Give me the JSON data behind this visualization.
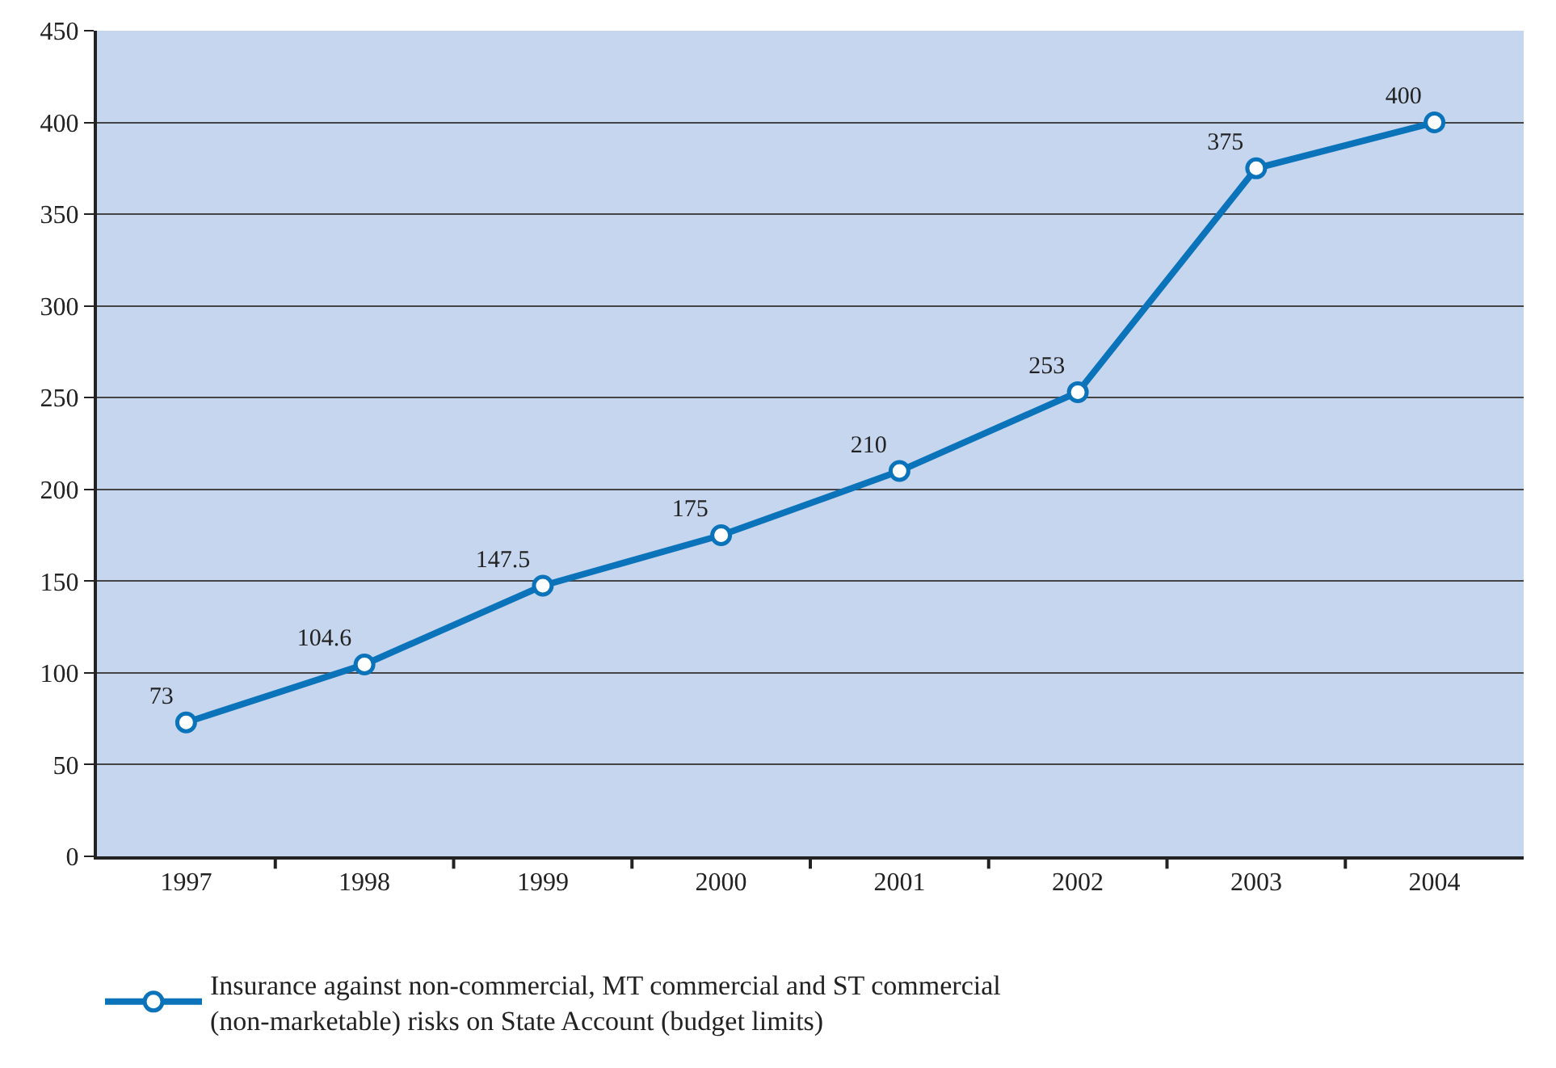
{
  "chart_data": {
    "type": "line",
    "categories": [
      "1997",
      "1998",
      "1999",
      "2000",
      "2001",
      "2002",
      "2003",
      "2004"
    ],
    "series": [
      {
        "name": "Insurance against non-commercial, MT commercial and ST commercial\n(non-marketable) risks on State Account (budget limits)",
        "color": "#0a73b9",
        "values": [
          73,
          104.6,
          147.5,
          175,
          210,
          253,
          375,
          400
        ]
      }
    ],
    "ylim": [
      0,
      450
    ],
    "yticks": [
      0,
      50,
      100,
      150,
      200,
      250,
      300,
      350,
      400,
      450
    ],
    "grid": "y",
    "legend": "bottom",
    "marker": "circle",
    "line_style": "solid",
    "data_labels": true
  }
}
